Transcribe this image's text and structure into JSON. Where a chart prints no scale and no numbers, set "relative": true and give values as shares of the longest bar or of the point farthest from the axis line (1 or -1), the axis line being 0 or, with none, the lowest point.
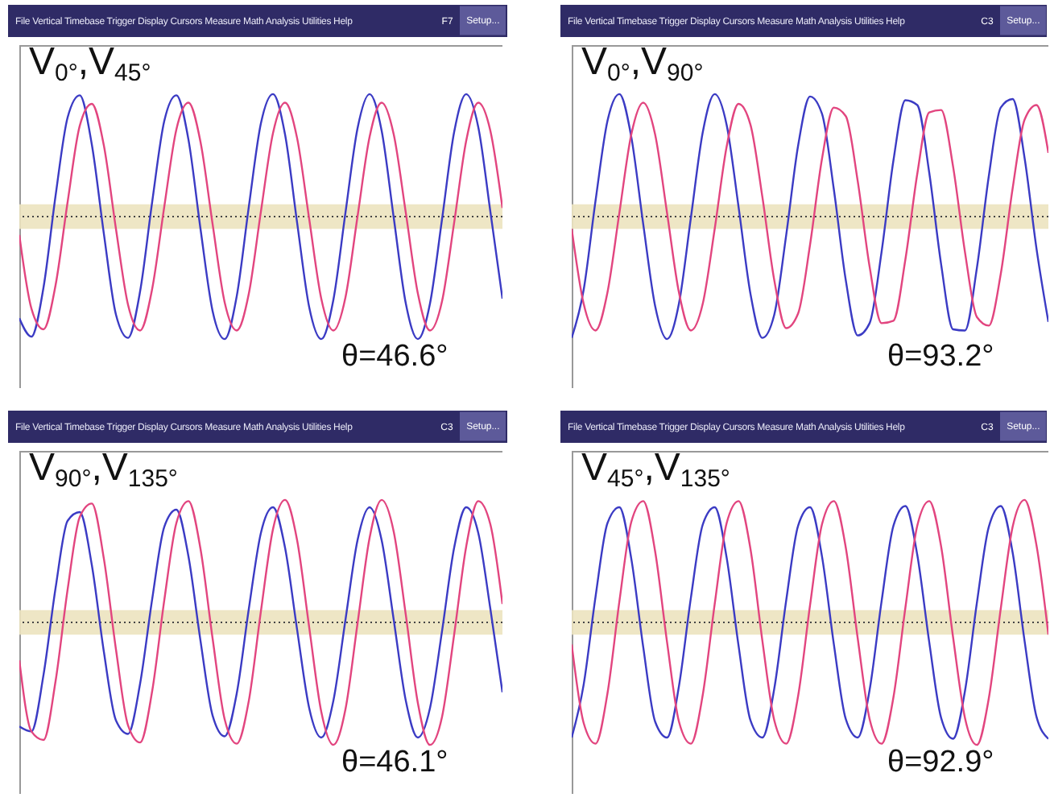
{
  "chart_data": [
    {
      "type": "line",
      "title": "V$_{0°}$,V$_{45°}$",
      "relative": true,
      "categories": [
        null,
        null,
        null,
        null,
        null,
        null,
        null,
        null,
        null,
        null,
        null,
        null,
        null,
        null,
        null,
        null,
        null,
        null,
        null,
        null,
        null,
        null,
        null,
        null,
        null,
        null,
        null,
        null,
        null,
        null,
        null,
        null,
        null,
        null,
        null,
        null,
        null,
        null,
        null,
        null,
        null
      ],
      "series": [
        {
          "color": "#3b3bc4",
          "values": [
            -0.83,
            -0.98,
            -0.58,
            0.17,
            0.81,
            0.99,
            0.59,
            -0.14,
            -0.8,
            -0.99,
            -0.61,
            0.12,
            0.78,
            0.99,
            0.63,
            -0.1,
            -0.77,
            -1,
            -0.65,
            0.08,
            0.76,
            1,
            0.67,
            -0.05,
            -0.74,
            -1,
            -0.68,
            0.03,
            0.72,
            1,
            0.7,
            -0.01,
            -0.71,
            -1,
            -0.71,
            -0.02,
            0.69,
            1,
            0.73,
            0.04,
            -0.67
          ]
        },
        {
          "color": "#e2457f",
          "values": [
            -0.15,
            -0.75,
            -0.92,
            -0.56,
            0.12,
            0.74,
            0.92,
            0.58,
            -0.1,
            -0.72,
            -0.93,
            -0.59,
            0.08,
            0.71,
            0.93,
            0.61,
            -0.06,
            -0.7,
            -0.93,
            -0.63,
            0.04,
            0.68,
            0.93,
            0.64,
            -0.02,
            -0.67,
            -0.93,
            -0.66,
            0,
            0.65,
            0.93,
            0.67,
            0.03,
            -0.63,
            -0.93,
            -0.69,
            -0.05,
            0.62,
            0.93,
            0.7,
            0.07
          ]
        }
      ],
      "bands": [
        {
          "axis": "y",
          "from": -0.1,
          "to": 0.1,
          "color": "#ece3bf"
        }
      ],
      "ref_lines": [
        {
          "axis": "y",
          "value": 0,
          "color": "#444444",
          "line_style": "dotted"
        }
      ],
      "annotations": [
        "File Vertical Timebase Trigger Display Cursors Measure Math Analysis Utilities Help",
        "F7",
        "Setup...",
        "θ=46.6°"
      ]
    },
    {
      "type": "line",
      "title": "V$_{0°}$,V$_{90°}$",
      "relative": true,
      "categories": [
        null,
        null,
        null,
        null,
        null,
        null,
        null,
        null,
        null,
        null,
        null,
        null,
        null,
        null,
        null,
        null,
        null,
        null,
        null,
        null,
        null,
        null,
        null,
        null,
        null,
        null,
        null,
        null,
        null,
        null,
        null,
        null,
        null,
        null,
        null,
        null,
        null,
        null,
        null,
        null,
        null
      ],
      "series": [
        {
          "color": "#3b3bc4",
          "values": [
            -0.99,
            -0.6,
            0.13,
            0.78,
            1,
            0.65,
            -0.06,
            -0.73,
            -1,
            -0.71,
            -0.01,
            0.69,
            1,
            0.75,
            0.08,
            -0.63,
            -0.99,
            -0.8,
            -0.15,
            0.58,
            0.98,
            0.84,
            0.22,
            -0.52,
            -0.97,
            -0.87,
            -0.29,
            0.46,
            0.95,
            0.91,
            0.36,
            -0.39,
            -0.92,
            -0.93,
            -0.42,
            0.33,
            0.89,
            0.96,
            0.48,
            -0.26,
            -0.86
          ]
        },
        {
          "color": "#e2457f",
          "values": [
            -0.1,
            -0.71,
            -0.93,
            -0.62,
            0.03,
            0.67,
            0.93,
            0.67,
            0.03,
            -0.62,
            -0.93,
            -0.71,
            -0.1,
            0.57,
            0.92,
            0.75,
            0.16,
            -0.52,
            -0.91,
            -0.79,
            -0.23,
            0.47,
            0.89,
            0.82,
            0.29,
            -0.41,
            -0.87,
            -0.85,
            -0.35,
            0.35,
            0.85,
            0.87,
            0.41,
            -0.29,
            -0.82,
            -0.89,
            -0.47,
            0.23,
            0.79,
            0.91,
            0.52
          ]
        }
      ],
      "bands": [
        {
          "axis": "y",
          "from": -0.1,
          "to": 0.1,
          "color": "#ece3bf"
        }
      ],
      "ref_lines": [
        {
          "axis": "y",
          "value": 0,
          "color": "#444444",
          "line_style": "dotted"
        }
      ],
      "annotations": [
        "File Vertical Timebase Trigger Display Cursors Measure Math Analysis Utilities Help",
        "C3",
        "Setup...",
        "θ=93.2°"
      ]
    },
    {
      "type": "line",
      "title": "V$_{90°}$,V$_{135°}$",
      "relative": true,
      "categories": [
        null,
        null,
        null,
        null,
        null,
        null,
        null,
        null,
        null,
        null,
        null,
        null,
        null,
        null,
        null,
        null,
        null,
        null,
        null,
        null,
        null,
        null,
        null,
        null,
        null,
        null,
        null,
        null,
        null,
        null,
        null,
        null,
        null,
        null,
        null,
        null,
        null,
        null,
        null,
        null,
        null
      ],
      "series": [
        {
          "color": "#3b3bc4",
          "values": [
            -0.85,
            -0.89,
            -0.43,
            0.28,
            0.83,
            0.9,
            0.47,
            -0.24,
            -0.8,
            -0.91,
            -0.5,
            0.19,
            0.78,
            0.92,
            0.54,
            -0.15,
            -0.76,
            -0.93,
            -0.58,
            0.11,
            0.73,
            0.94,
            0.61,
            -0.06,
            -0.7,
            -0.94,
            -0.64,
            0.02,
            0.67,
            0.94,
            0.67,
            0.02,
            -0.64,
            -0.94,
            -0.7,
            -0.07,
            0.61,
            0.94,
            0.73,
            0.11,
            -0.57
          ]
        },
        {
          "color": "#e2457f",
          "values": [
            -0.31,
            -0.89,
            -0.96,
            -0.48,
            0.27,
            0.86,
            0.97,
            0.52,
            -0.22,
            -0.84,
            -0.98,
            -0.56,
            0.18,
            0.81,
            0.99,
            0.6,
            -0.13,
            -0.79,
            -0.99,
            -0.64,
            0.09,
            0.76,
            1,
            0.67,
            -0.04,
            -0.73,
            -1,
            -0.71,
            -0.01,
            0.69,
            1,
            0.74,
            0.06,
            -0.66,
            -1,
            -0.77,
            -0.1,
            0.62,
            0.99,
            0.8,
            0.15
          ]
        }
      ],
      "bands": [
        {
          "axis": "y",
          "from": -0.1,
          "to": 0.1,
          "color": "#ece3bf"
        }
      ],
      "ref_lines": [
        {
          "axis": "y",
          "value": 0,
          "color": "#444444",
          "line_style": "dotted"
        }
      ],
      "annotations": [
        "File Vertical Timebase Trigger Display Cursors Measure Math Analysis Utilities Help",
        "C3",
        "Setup...",
        "θ=46.1°"
      ]
    },
    {
      "type": "line",
      "title": "V$_{45°}$,V$_{135°}$",
      "relative": true,
      "categories": [
        null,
        null,
        null,
        null,
        null,
        null,
        null,
        null,
        null,
        null,
        null,
        null,
        null,
        null,
        null,
        null,
        null,
        null,
        null,
        null,
        null,
        null,
        null,
        null,
        null,
        null,
        null,
        null,
        null,
        null,
        null,
        null,
        null,
        null,
        null,
        null,
        null,
        null,
        null,
        null,
        null
      ],
      "series": [
        {
          "color": "#3b3bc4",
          "values": [
            -0.94,
            -0.51,
            0.21,
            0.81,
            0.94,
            0.52,
            -0.2,
            -0.81,
            -0.94,
            -0.52,
            0.2,
            0.8,
            0.94,
            0.53,
            -0.19,
            -0.8,
            -0.94,
            -0.54,
            0.18,
            0.79,
            0.94,
            0.54,
            -0.18,
            -0.79,
            -0.94,
            -0.55,
            0.17,
            0.79,
            0.95,
            0.55,
            -0.16,
            -0.78,
            -0.95,
            -0.56,
            0.16,
            0.78,
            0.95,
            0.57,
            -0.15,
            -0.77,
            -0.95
          ]
        },
        {
          "color": "#e2457f",
          "values": [
            -0.18,
            -0.82,
            -0.99,
            -0.58,
            0.17,
            0.82,
            0.99,
            0.58,
            -0.16,
            -0.81,
            -0.99,
            -0.59,
            0.15,
            0.81,
            0.99,
            0.6,
            -0.15,
            -0.8,
            -0.99,
            -0.6,
            0.14,
            0.8,
            0.99,
            0.61,
            -0.13,
            -0.79,
            -0.99,
            -0.61,
            0.12,
            0.79,
            0.99,
            0.62,
            -0.12,
            -0.78,
            -1,
            -0.62,
            0.11,
            0.78,
            1,
            0.63,
            -0.1
          ]
        }
      ],
      "bands": [
        {
          "axis": "y",
          "from": -0.1,
          "to": 0.1,
          "color": "#ece3bf"
        }
      ],
      "ref_lines": [
        {
          "axis": "y",
          "value": 0,
          "color": "#444444",
          "line_style": "dotted"
        }
      ],
      "annotations": [
        "File Vertical Timebase Trigger Display Cursors Measure Math Analysis Utilities Help",
        "C3",
        "Setup...",
        "θ=92.9°"
      ]
    }
  ]
}
